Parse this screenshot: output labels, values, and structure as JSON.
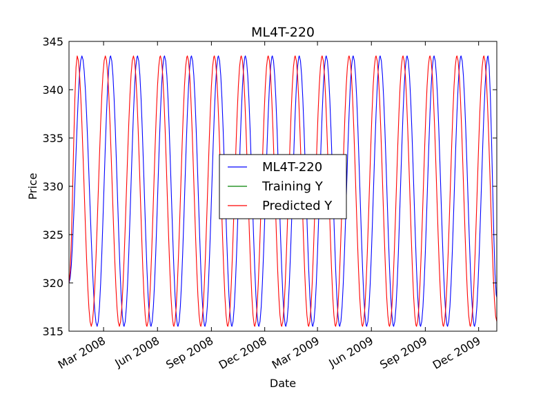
{
  "chart_data": {
    "type": "line",
    "title": "ML4T-220",
    "xlabel": "Date",
    "ylabel": "Price",
    "xlim": [
      "2008-01-02",
      "2010-01-01"
    ],
    "ylim": [
      315,
      345
    ],
    "ytick_values": [
      315,
      320,
      325,
      330,
      335,
      340,
      345
    ],
    "xtick_dates": [
      "2008-03-01",
      "2008-06-01",
      "2008-09-01",
      "2008-12-01",
      "2009-03-01",
      "2009-06-01",
      "2009-09-01",
      "2009-12-01"
    ],
    "xtick_labels": [
      "Mar 2008",
      "Jun 2008",
      "Sep 2008",
      "Dec 2008",
      "Mar 2009",
      "Jun 2009",
      "Sep 2009",
      "Dec 2009"
    ],
    "legend_position": "center",
    "grid": false,
    "series": [
      {
        "name": "ML4T-220",
        "color": "#0000ff",
        "x": [
          "2008-01-02",
          "2008-01-24",
          "2008-02-19",
          "2008-03-13",
          "2008-04-05",
          "2008-04-28",
          "2008-05-21",
          "2008-06-13",
          "2008-07-06",
          "2008-07-29",
          "2008-08-21",
          "2008-09-13",
          "2008-10-06",
          "2008-10-29",
          "2008-11-21",
          "2008-12-14",
          "2009-01-06",
          "2009-01-29",
          "2009-02-21",
          "2009-03-16",
          "2009-04-08",
          "2009-05-01",
          "2009-05-24",
          "2009-06-16",
          "2009-07-09",
          "2009-08-01",
          "2009-08-24",
          "2009-09-16",
          "2009-10-09",
          "2009-11-01",
          "2009-11-24",
          "2009-12-17",
          "2010-01-01"
        ],
        "y": [
          320,
          343.5,
          315.5,
          343.5,
          315.5,
          343.5,
          315.5,
          343.5,
          315.5,
          343.5,
          315.5,
          343.5,
          315.5,
          343.5,
          315.5,
          343.5,
          315.5,
          343.5,
          315.5,
          343.5,
          315.5,
          343.5,
          315.5,
          343.5,
          315.5,
          343.5,
          315.5,
          343.5,
          315.5,
          343.5,
          315.5,
          343.5,
          318.5
        ]
      },
      {
        "name": "Training Y",
        "color": "#008000",
        "x": [],
        "y": []
      },
      {
        "name": "Predicted Y",
        "color": "#ff0000",
        "x": [
          "2008-01-02",
          "2008-01-16",
          "2008-02-09",
          "2008-03-04",
          "2008-03-28",
          "2008-04-21",
          "2008-05-14",
          "2008-06-06",
          "2008-06-29",
          "2008-07-22",
          "2008-08-14",
          "2008-09-06",
          "2008-09-29",
          "2008-10-22",
          "2008-11-14",
          "2008-12-07",
          "2008-12-30",
          "2009-01-22",
          "2009-02-14",
          "2009-03-09",
          "2009-04-01",
          "2009-04-24",
          "2009-05-17",
          "2009-06-09",
          "2009-07-02",
          "2009-07-25",
          "2009-08-17",
          "2009-09-09",
          "2009-10-02",
          "2009-10-25",
          "2009-11-17",
          "2009-12-10",
          "2010-01-01"
        ],
        "y": [
          320,
          343.5,
          315.5,
          343.5,
          315.5,
          343.5,
          315.5,
          343.5,
          315.5,
          343.5,
          315.5,
          343.5,
          315.5,
          343.5,
          315.5,
          343.5,
          315.5,
          343.5,
          315.5,
          343.5,
          315.5,
          343.5,
          315.5,
          343.5,
          315.5,
          343.5,
          315.5,
          343.5,
          315.5,
          343.5,
          315.5,
          343.5,
          316
        ]
      }
    ]
  }
}
